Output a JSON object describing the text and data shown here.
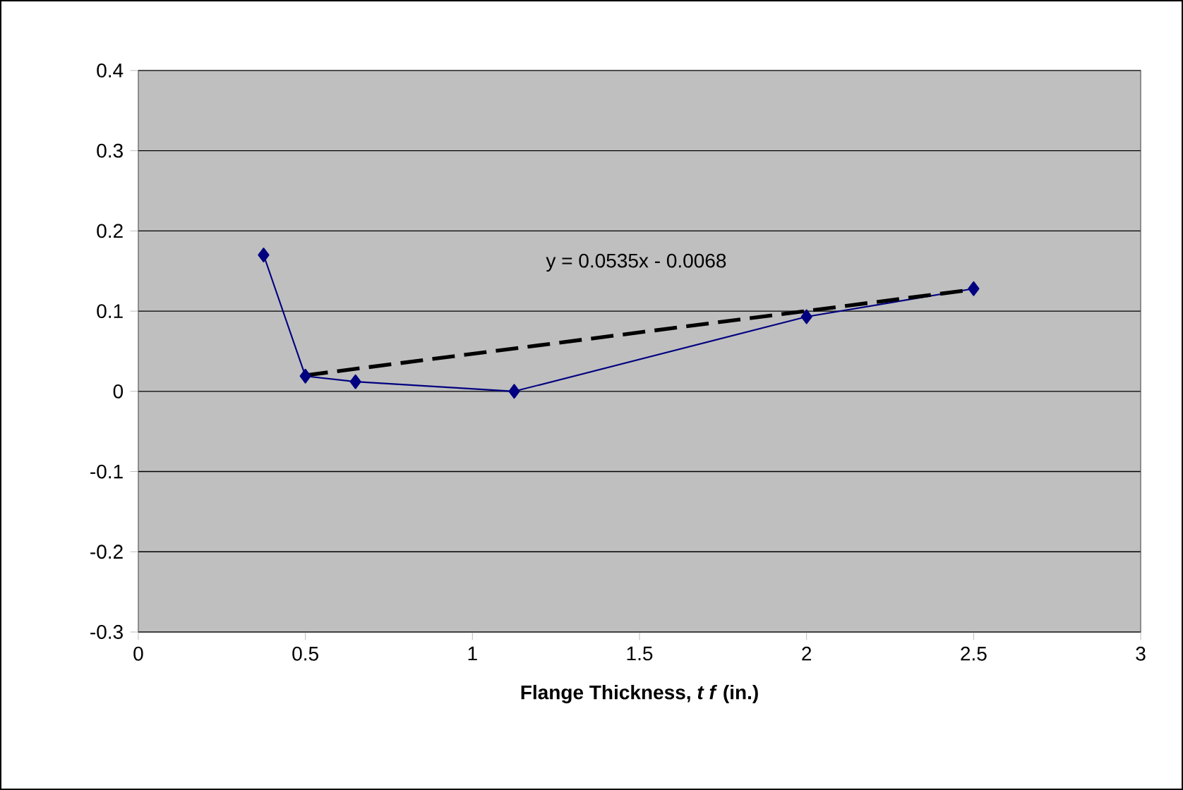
{
  "chart_data": {
    "type": "line",
    "xlabel": "**Flange Thickness, *t f* (in.)**",
    "series": [
      {
        "color": "#000080",
        "marker": "diamond",
        "line_style": "solid",
        "x": [
          0.375,
          0.5,
          0.65,
          1.125,
          2,
          2.5
        ],
        "values": [
          0.17,
          0.019,
          0.012,
          0.0,
          0.093,
          0.128
        ]
      },
      {
        "color": "#000000",
        "marker": "none",
        "line_style": "dashed",
        "x": [
          0.5,
          2.5
        ],
        "values": [
          0.02,
          0.127
        ]
      }
    ],
    "annotations": [
      "y = 0.0535x - 0.0068"
    ],
    "xlim": [
      0,
      3
    ],
    "xticks": [
      0,
      0.5,
      1,
      1.5,
      2,
      2.5,
      3
    ],
    "ylim": [
      -0.3,
      0.4
    ],
    "yticks": [
      -0.3,
      -0.2,
      -0.1,
      0,
      0.1,
      0.2,
      0.3,
      0.4
    ],
    "grid": "y"
  }
}
